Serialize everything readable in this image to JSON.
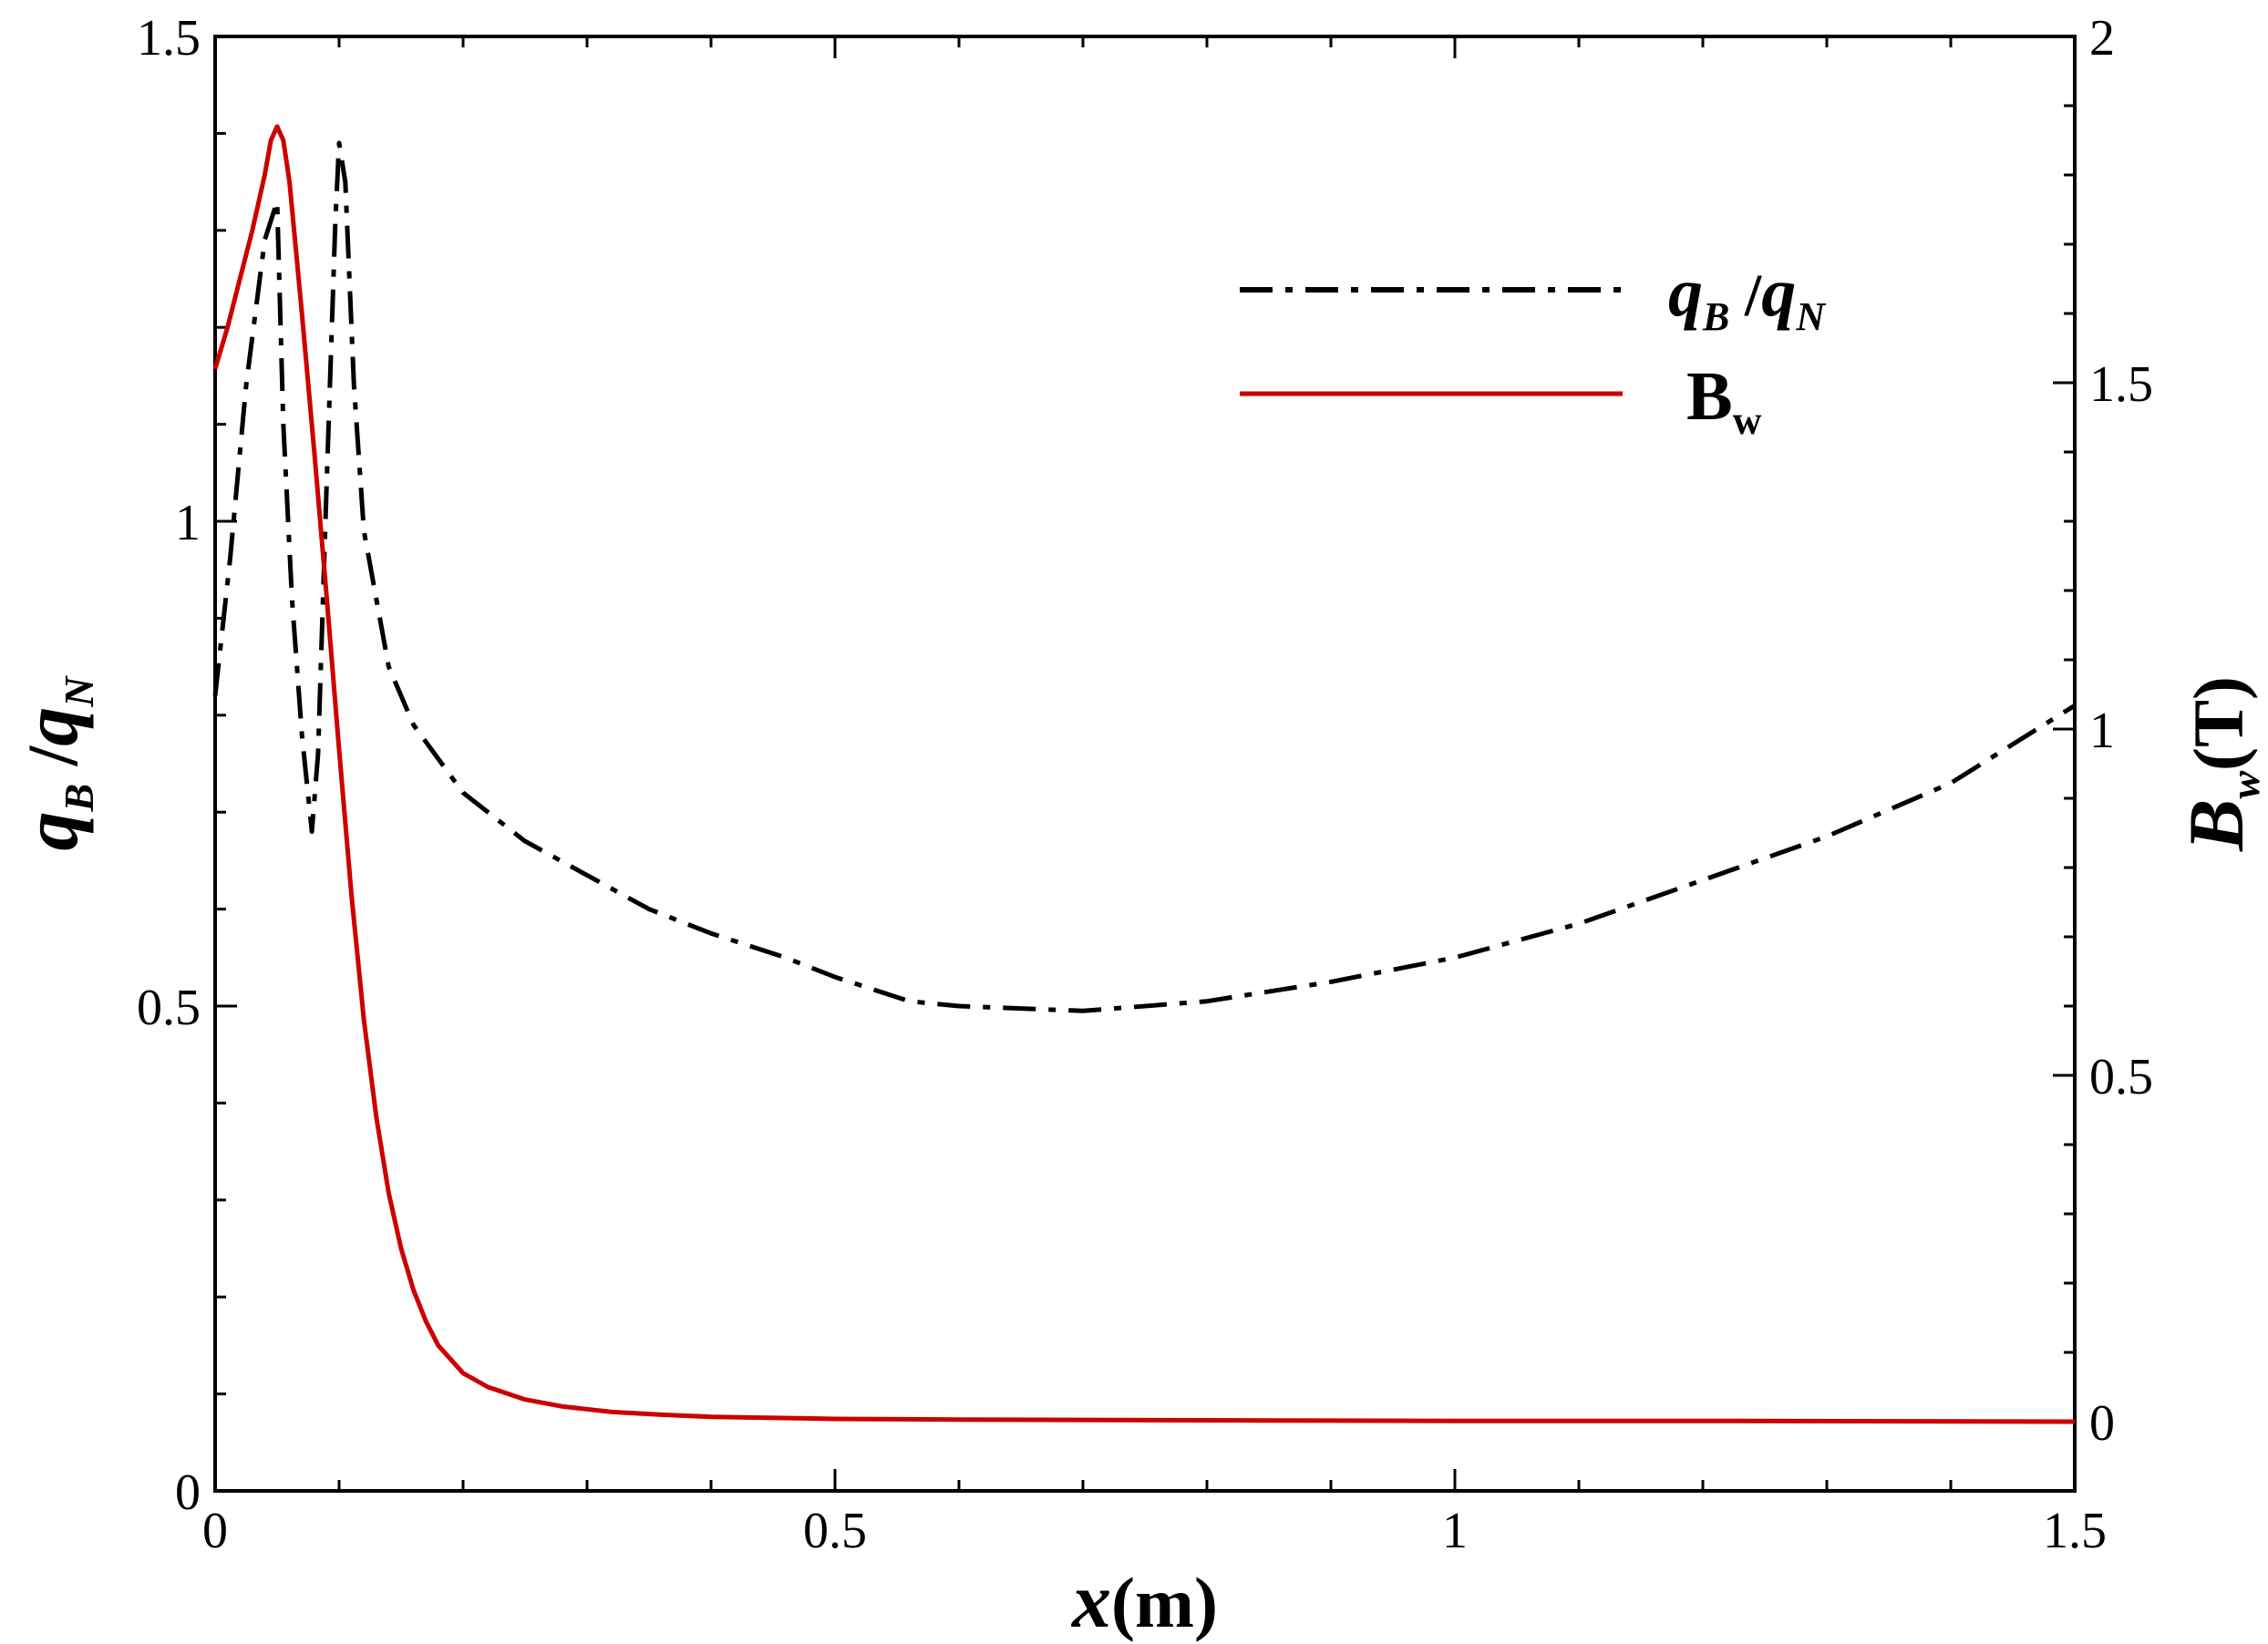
{
  "chart_data": {
    "type": "line",
    "title": "",
    "xlabel": {
      "var": "x",
      "unit": "(m)"
    },
    "ylabel_left": {
      "q": "q",
      "sub_B": "B",
      "sep": " /",
      "sub_N": "N"
    },
    "ylabel_right": {
      "var": "B",
      "sub": "w",
      "unit": "(T)"
    },
    "xlim": [
      0,
      1.5
    ],
    "ylim_left": [
      0,
      1.5
    ],
    "ylim_right": [
      -0.1,
      2
    ],
    "x_ticks": [
      "0",
      "0.5",
      "1",
      "1.5"
    ],
    "y_left_ticks": [
      "0",
      "0.5",
      "1",
      "1.5"
    ],
    "y_right_ticks": [
      "0",
      "0.5",
      "1",
      "1.5",
      "2"
    ],
    "grid": false,
    "legend_position": "top-right",
    "colors": {
      "qB_qN": "#000000",
      "Bw": "#cc0000"
    },
    "series": [
      {
        "name": "qB/qN",
        "legend": {
          "q": "q",
          "sub_B": "B",
          "sep": " /",
          "sub_N": "N"
        },
        "axis": "left",
        "style": "dash-dot",
        "x": [
          0,
          0.012,
          0.025,
          0.04,
          0.05,
          0.055,
          0.062,
          0.07,
          0.078,
          0.083,
          0.09,
          0.097,
          0.1,
          0.105,
          0.112,
          0.12,
          0.14,
          0.16,
          0.2,
          0.25,
          0.3,
          0.35,
          0.4,
          0.46,
          0.5,
          0.56,
          0.6,
          0.7,
          0.8,
          0.9,
          1.0,
          1.1,
          1.2,
          1.3,
          1.4,
          1.5
        ],
        "values": [
          0.82,
          0.96,
          1.14,
          1.29,
          1.33,
          1.1,
          0.92,
          0.78,
          0.68,
          0.76,
          1.04,
          1.31,
          1.39,
          1.35,
          1.14,
          0.99,
          0.85,
          0.79,
          0.72,
          0.67,
          0.635,
          0.6,
          0.575,
          0.55,
          0.53,
          0.505,
          0.5,
          0.495,
          0.505,
          0.525,
          0.55,
          0.585,
          0.63,
          0.675,
          0.73,
          0.81
        ]
      },
      {
        "name": "Bw",
        "legend": {
          "B": "B",
          "sub": "w"
        },
        "axis": "right",
        "style": "solid",
        "x": [
          0,
          0.01,
          0.02,
          0.03,
          0.04,
          0.045,
          0.05,
          0.055,
          0.06,
          0.07,
          0.08,
          0.09,
          0.1,
          0.11,
          0.12,
          0.13,
          0.14,
          0.15,
          0.16,
          0.17,
          0.18,
          0.2,
          0.22,
          0.25,
          0.28,
          0.32,
          0.36,
          0.4,
          0.5,
          0.6,
          0.8,
          1.0,
          1.2,
          1.5
        ],
        "values": [
          1.52,
          1.58,
          1.65,
          1.72,
          1.8,
          1.85,
          1.87,
          1.85,
          1.79,
          1.6,
          1.4,
          1.19,
          0.97,
          0.76,
          0.58,
          0.44,
          0.33,
          0.25,
          0.19,
          0.145,
          0.11,
          0.07,
          0.05,
          0.032,
          0.022,
          0.014,
          0.01,
          0.007,
          0.004,
          0.003,
          0.002,
          0.001,
          0.001,
          0.0
        ]
      }
    ]
  }
}
